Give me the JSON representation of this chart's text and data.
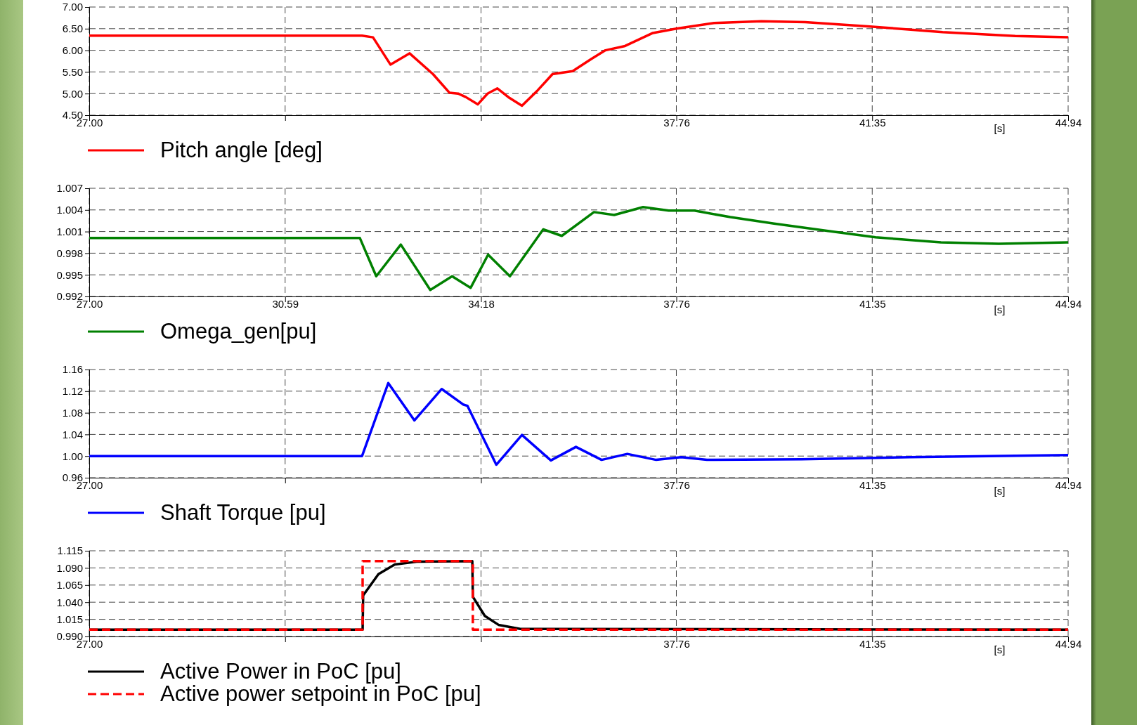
{
  "chart_data": [
    {
      "type": "line",
      "xlabel": "[s]",
      "xlim": [
        27.0,
        44.94
      ],
      "xticks": [
        {
          "value": 27.0,
          "label": "27.00"
        },
        {
          "value": 30.59,
          "label": null
        },
        {
          "value": 34.18,
          "label": null
        },
        37.76,
        41.35,
        44.94
      ],
      "ylim": [
        4.5,
        7.0
      ],
      "yticks": [
        {
          "value": 4.5,
          "label": "4.50"
        },
        {
          "value": 5.0,
          "label": "5.00"
        },
        {
          "value": 5.5,
          "label": "5.50"
        },
        {
          "value": 6.0,
          "label": "6.00"
        },
        {
          "value": 6.5,
          "label": "6.50"
        },
        {
          "value": 7.0,
          "label": "7.00"
        }
      ],
      "grid": true,
      "legend": "bottom left",
      "line_style": "solid",
      "series": [
        {
          "name": "Pitch angle [deg]",
          "color": "#ff0000",
          "x": [
            27.0,
            32.0,
            32.2,
            32.52,
            32.87,
            33.3,
            33.6,
            33.76,
            33.9,
            34.12,
            34.3,
            34.48,
            34.7,
            34.93,
            35.2,
            35.49,
            35.86,
            36.2,
            36.46,
            36.82,
            37.33,
            37.76,
            38.45,
            39.32,
            40.12,
            41.31,
            42.64,
            43.97,
            44.94
          ],
          "values": [
            6.34,
            6.34,
            6.3,
            5.67,
            5.93,
            5.45,
            5.02,
            5.0,
            4.92,
            4.75,
            5.0,
            5.12,
            4.9,
            4.72,
            5.05,
            5.45,
            5.52,
            5.8,
            6.0,
            6.1,
            6.4,
            6.5,
            6.63,
            6.67,
            6.65,
            6.55,
            6.42,
            6.33,
            6.3
          ]
        }
      ]
    },
    {
      "type": "line",
      "xlabel": "[s]",
      "xlim": [
        27.0,
        44.94
      ],
      "xticks": [
        {
          "value": 27.0,
          "label": "27.00"
        },
        30.59,
        34.18,
        37.76,
        41.35,
        44.94
      ],
      "ylim": [
        0.992,
        1.007
      ],
      "yticks": [
        0.992,
        0.995,
        0.998,
        1.001,
        1.004,
        1.007
      ],
      "grid": true,
      "legend": "bottom left",
      "line_style": "solid",
      "series": [
        {
          "name": "Omega_gen[pu]",
          "color": "#008000",
          "x": [
            27.0,
            29.0,
            31.96,
            32.26,
            32.71,
            33.25,
            33.65,
            33.99,
            34.31,
            34.71,
            35.32,
            35.66,
            36.25,
            36.62,
            37.15,
            37.62,
            38.09,
            38.75,
            39.55,
            40.61,
            41.41,
            42.61,
            43.67,
            44.94
          ],
          "values": [
            1.0001,
            1.0001,
            1.0001,
            0.9948,
            0.9992,
            0.9929,
            0.9948,
            0.9932,
            0.9978,
            0.9948,
            1.0013,
            1.0004,
            1.0037,
            1.0033,
            1.0044,
            1.0039,
            1.0039,
            1.003,
            1.0021,
            1.001,
            1.0002,
            0.9995,
            0.9993,
            0.9995
          ]
        }
      ]
    },
    {
      "type": "line",
      "xlabel": "[s]",
      "xlim": [
        27.0,
        44.94
      ],
      "xticks": [
        {
          "value": 27.0,
          "label": "27.00"
        },
        {
          "value": 30.59,
          "label": null
        },
        {
          "value": 34.18,
          "label": null
        },
        37.76,
        41.35,
        44.94
      ],
      "ylim": [
        0.96,
        1.16
      ],
      "yticks": [
        0.96,
        {
          "value": 1.0,
          "label": "1.00"
        },
        1.04,
        1.08,
        1.12,
        1.16
      ],
      "grid": true,
      "legend": "bottom left",
      "line_style": "solid",
      "series": [
        {
          "name": "Shaft Torque [pu]",
          "color": "#0000ff",
          "x": [
            27.0,
            32.0,
            32.48,
            32.96,
            33.46,
            33.86,
            33.93,
            34.46,
            34.93,
            35.46,
            35.92,
            36.39,
            36.86,
            37.39,
            37.85,
            38.32,
            40.05,
            42.04,
            44.94
          ],
          "values": [
            1.0,
            1.0,
            1.135,
            1.066,
            1.124,
            1.095,
            1.093,
            0.984,
            1.039,
            0.992,
            1.017,
            0.993,
            1.004,
            0.993,
            0.998,
            0.993,
            0.994,
            0.998,
            1.002
          ]
        }
      ]
    },
    {
      "type": "line",
      "xlabel": "[s]",
      "xlim": [
        27.0,
        44.94
      ],
      "xticks": [
        {
          "value": 27.0,
          "label": "27.00"
        },
        {
          "value": 30.59,
          "label": null
        },
        {
          "value": 34.18,
          "label": null
        },
        37.76,
        41.35,
        44.94
      ],
      "ylim": [
        0.99,
        1.115
      ],
      "yticks": [
        {
          "value": 0.99,
          "label": "0.990"
        },
        1.015,
        {
          "value": 1.04,
          "label": "1.040"
        },
        1.065,
        {
          "value": 1.09,
          "label": "1.090"
        },
        1.115
      ],
      "grid": true,
      "legend": "bottom left",
      "series": [
        {
          "name": "Active Power  in PoC [pu]",
          "color": "#000000",
          "line_style": "solid",
          "x": [
            27.0,
            32.01,
            32.02,
            32.3,
            32.6,
            33.0,
            34.02,
            34.03,
            34.25,
            34.5,
            34.9,
            44.94
          ],
          "values": [
            1.0,
            1.0,
            1.05,
            1.081,
            1.095,
            1.099,
            1.1,
            1.048,
            1.02,
            1.007,
            1.001,
            1.0
          ]
        },
        {
          "name": "Active power setpoint in PoC [pu]",
          "color": "#ff0000",
          "type": "step",
          "line_style": "dashed",
          "x": [
            27.0,
            32.01,
            34.03,
            44.94
          ],
          "values": [
            1.0,
            1.1,
            1.0,
            1.0
          ]
        }
      ]
    }
  ]
}
